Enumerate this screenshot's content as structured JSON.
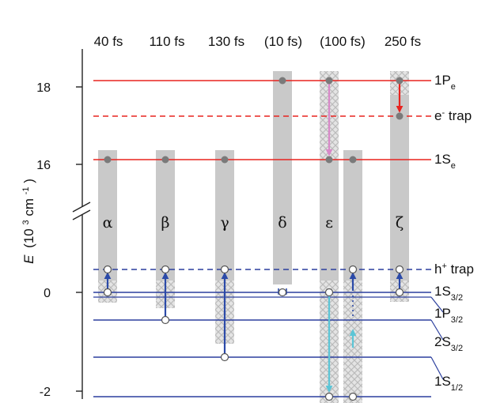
{
  "timescales": [
    "40 fs",
    "110 fs",
    "130 fs",
    "(10 fs)",
    "(100 fs)",
    "250 fs"
  ],
  "axis": {
    "ylabel_symbol": "E",
    "ylabel_units": "(10",
    "ylabel_exp": "3",
    "ylabel_tail": " cm",
    "ylabel_exp2": "-1",
    "ylabel_close": ")",
    "ticks": [
      "18",
      "16",
      "0",
      "-2"
    ]
  },
  "columns": [
    "α",
    "β",
    "γ",
    "δ",
    "ε",
    "ζ"
  ],
  "levels": {
    "p1e": {
      "main": "1P",
      "sub": "e"
    },
    "etrap": {
      "prefix": "e",
      "sup": "-",
      "rest": " trap"
    },
    "s1e": {
      "main": "1S",
      "sub": "e"
    },
    "htrap": {
      "prefix": "h",
      "sup": "+",
      "rest": " trap"
    },
    "s32_1": {
      "main": "1S",
      "sub": "3/2"
    },
    "p32": {
      "main": "1P",
      "sub": "3/2"
    },
    "s32_2": {
      "main": "2S",
      "sub": "3/2"
    },
    "s12": {
      "main": "1S",
      "sub": "1/2"
    }
  },
  "colors": {
    "electron_level": "#e8231f",
    "hole_level": "#2b3f9e",
    "bar": "#c9c9c9",
    "arrow_blue": "#2b4aa8",
    "arrow_red": "#e8231f",
    "arrow_pink": "#d889c8",
    "arrow_cyan": "#5cc5d6"
  }
}
